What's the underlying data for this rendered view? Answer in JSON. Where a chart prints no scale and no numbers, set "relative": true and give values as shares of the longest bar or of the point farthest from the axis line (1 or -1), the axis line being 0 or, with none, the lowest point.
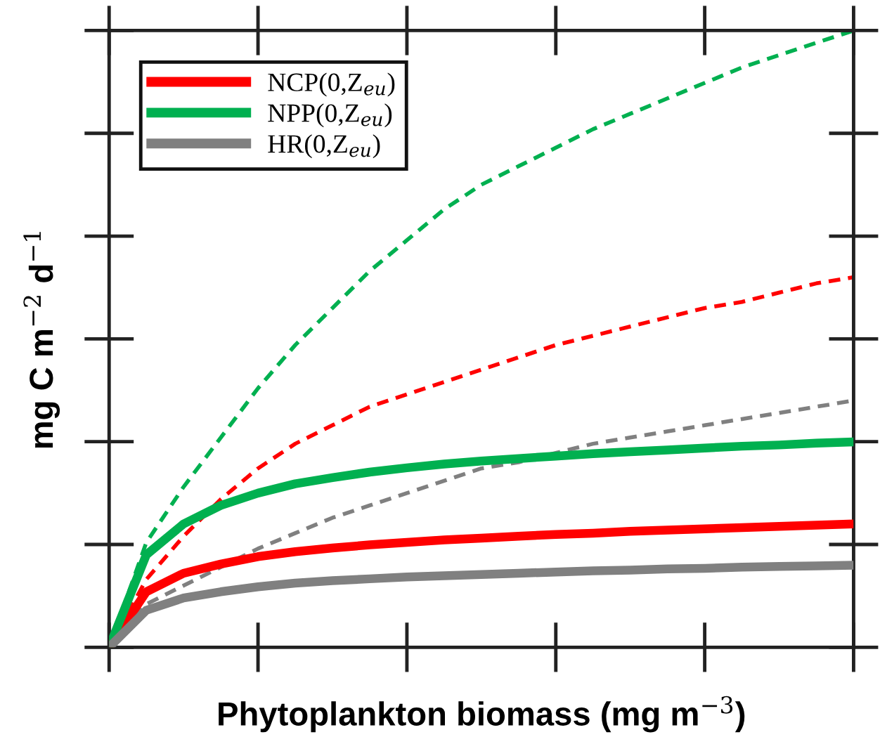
{
  "chart_data": {
    "type": "line",
    "relative": true,
    "xlabel": "Phytoplankton biomass (mg m$^{−3}$)",
    "ylabel": "mg C m$^{−2}$ d$^{−1}$",
    "categories": [
      null,
      null,
      null,
      null,
      null,
      null,
      null,
      null,
      null,
      null,
      null,
      null,
      null,
      null,
      null,
      null,
      null,
      null,
      null,
      null,
      null
    ],
    "series": [
      {
        "name": "NCP(0,Z$_{eu}$)",
        "color": "#ff0000",
        "line_style": "solid",
        "values": [
          0,
          0.09,
          0.12,
          0.135,
          0.147,
          0.155,
          0.161,
          0.166,
          0.17,
          0.174,
          0.177,
          0.18,
          0.183,
          0.185,
          0.188,
          0.19,
          0.192,
          0.194,
          0.196,
          0.198,
          0.2
        ]
      },
      {
        "name": "NPP(0,Z$_{eu}$)",
        "color": "#00b050",
        "line_style": "solid",
        "values": [
          0,
          0.15,
          0.2,
          0.23,
          0.25,
          0.265,
          0.275,
          0.284,
          0.291,
          0.297,
          0.302,
          0.306,
          0.31,
          0.314,
          0.317,
          0.32,
          0.323,
          0.326,
          0.328,
          0.331,
          0.333
        ]
      },
      {
        "name": "HR(0,Z$_{eu}$)",
        "color": "#808080",
        "line_style": "solid",
        "values": [
          0,
          0.06,
          0.08,
          0.09,
          0.098,
          0.104,
          0.108,
          0.111,
          0.114,
          0.116,
          0.118,
          0.12,
          0.122,
          0.124,
          0.125,
          0.127,
          0.128,
          0.13,
          0.131,
          0.132,
          0.133
        ]
      },
      {
        "color": "#00b050",
        "line_style": "dashed",
        "values": [
          0,
          0.17,
          0.26,
          0.34,
          0.42,
          0.49,
          0.55,
          0.61,
          0.66,
          0.71,
          0.75,
          0.78,
          0.81,
          0.84,
          0.865,
          0.89,
          0.915,
          0.94,
          0.96,
          0.98,
          1.0
        ]
      },
      {
        "color": "#ff0000",
        "line_style": "dashed",
        "values": [
          0,
          0.11,
          0.18,
          0.24,
          0.29,
          0.33,
          0.36,
          0.39,
          0.41,
          0.43,
          0.45,
          0.47,
          0.49,
          0.505,
          0.52,
          0.535,
          0.55,
          0.56,
          0.575,
          0.59,
          0.6
        ]
      },
      {
        "color": "#808080",
        "line_style": "dashed",
        "values": [
          0,
          0.07,
          0.1,
          0.13,
          0.16,
          0.185,
          0.21,
          0.23,
          0.25,
          0.27,
          0.29,
          0.3,
          0.315,
          0.33,
          0.34,
          0.35,
          0.36,
          0.37,
          0.38,
          0.39,
          0.4
        ]
      }
    ],
    "legend": "top left",
    "marker": "none"
  }
}
